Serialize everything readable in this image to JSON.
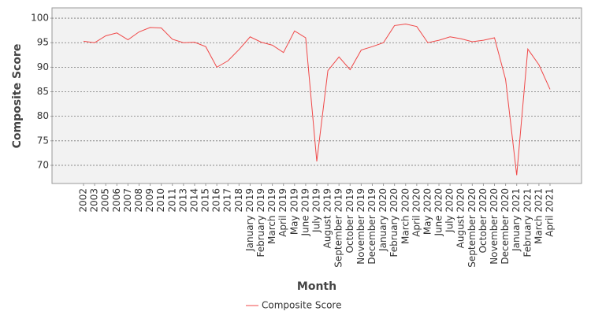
{
  "chart_data": {
    "type": "line",
    "x_label": "Month",
    "y_label": "Composite Score",
    "categories": [
      "2002",
      "2003",
      "2005",
      "2006",
      "2007",
      "2008",
      "2009",
      "2010",
      "2011",
      "2013",
      "2014",
      "2015",
      "2016",
      "2017",
      "2018",
      "January 2019",
      "February 2019",
      "March 2019",
      "April 2019",
      "May 2019",
      "June 2019",
      "July 2019",
      "August 2019",
      "September 2019",
      "October 2019",
      "November 2019",
      "December 2019",
      "January 2020",
      "February 2020",
      "March 2020",
      "April 2020",
      "May 2020",
      "June 2020",
      "July 2020",
      "August 2020",
      "September 2020",
      "October 2020",
      "November 2020",
      "December 2020",
      "January 2021",
      "February 2021",
      "March 2021",
      "April 2021"
    ],
    "series": [
      {
        "name": "Composite Score",
        "color": "#f04848",
        "values": [
          95.3,
          95.0,
          96.4,
          97.0,
          95.6,
          97.2,
          98.1,
          98.0,
          95.7,
          95.0,
          95.1,
          94.2,
          90.0,
          91.3,
          93.6,
          96.2,
          95.1,
          94.5,
          93.0,
          97.4,
          96.0,
          70.8,
          89.3,
          92.1,
          89.5,
          93.5,
          94.2,
          95.0,
          98.5,
          98.8,
          98.3,
          95.0,
          95.5,
          96.2,
          95.8,
          95.2,
          95.5,
          96.0,
          87.5,
          68.0,
          93.7,
          90.5,
          85.5
        ]
      }
    ],
    "ylim": [
      66.3,
      102.1
    ],
    "yticks": [
      70,
      75,
      80,
      85,
      90,
      95,
      100
    ],
    "grid": true,
    "legend": "bottom"
  }
}
